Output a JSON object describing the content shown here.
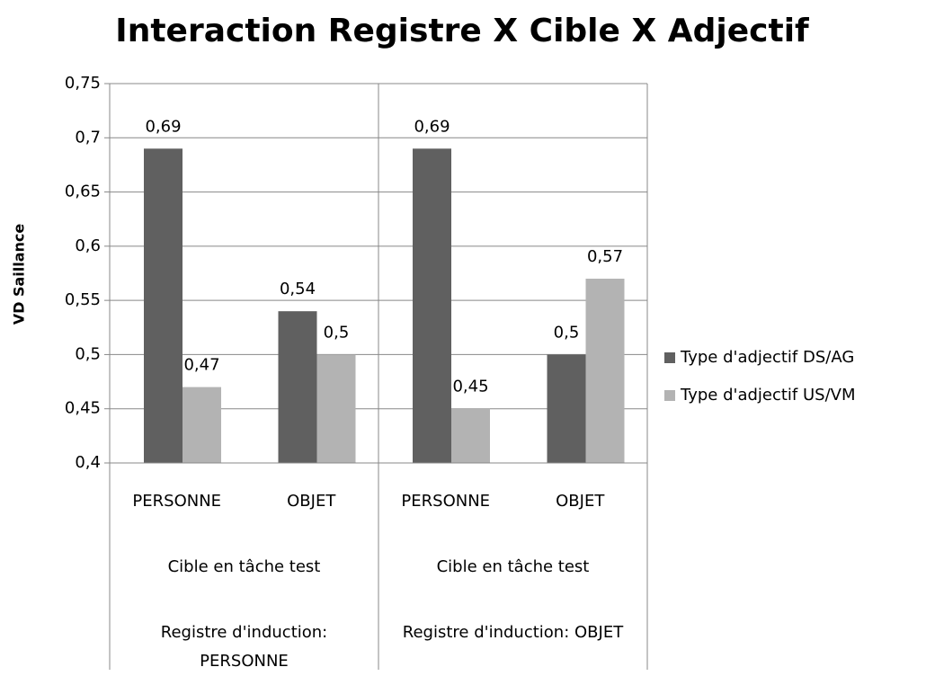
{
  "chart_data": {
    "type": "bar",
    "title": "Interaction Registre X Cible X Adjectif",
    "y_label": "VD Saillance",
    "categories": [
      "PERSONNE",
      "OBJET",
      "PERSONNE",
      "OBJET"
    ],
    "groups": [
      {
        "target": "Cible en tâche test",
        "induction": "Registre d'induction: PERSONNE"
      },
      {
        "target": "Cible en tâche test",
        "induction": "Registre d'induction: OBJET"
      }
    ],
    "series": [
      {
        "name": "Type d'adjectif DS/AG",
        "color": "#606060",
        "values": [
          0.69,
          0.54,
          0.69,
          0.5
        ],
        "value_labels": [
          "0,69",
          "0,54",
          "0,69",
          "0,5"
        ]
      },
      {
        "name": "Type d'adjectif US/VM",
        "color": "#b3b3b3",
        "values": [
          0.47,
          0.5,
          0.45,
          0.57
        ],
        "value_labels": [
          "0,47",
          "0,5",
          "0,45",
          "0,57"
        ]
      }
    ],
    "ylim": [
      0.4,
      0.75
    ],
    "yticks": [
      {
        "value": 0.4,
        "label": "0,4"
      },
      {
        "value": 0.45,
        "label": "0,45"
      },
      {
        "value": 0.5,
        "label": "0,5"
      },
      {
        "value": 0.55,
        "label": "0,55"
      },
      {
        "value": 0.6,
        "label": "0,6"
      },
      {
        "value": 0.65,
        "label": "0,65"
      },
      {
        "value": 0.7,
        "label": "0,7"
      },
      {
        "value": 0.75,
        "label": "0,75"
      }
    ],
    "grid": true,
    "legend": "right"
  }
}
